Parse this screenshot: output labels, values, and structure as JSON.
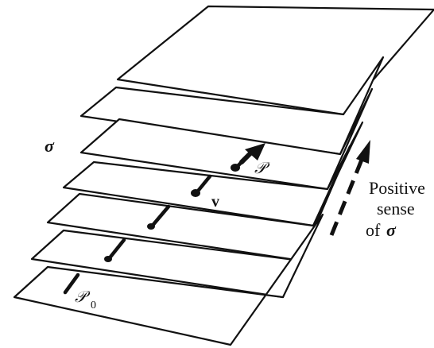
{
  "labels": {
    "sigma": "σ",
    "point_p": "𝒫",
    "point_p0_main": "𝒫",
    "point_p0_sub": "0",
    "vector_v": "v",
    "positive_line1": "Positive",
    "positive_line2": "sense",
    "positive_line3_prefix": "of",
    "positive_line3_symbol": "σ"
  },
  "style": {
    "ink": "#111111",
    "sheet_fill": "#ffffff"
  }
}
